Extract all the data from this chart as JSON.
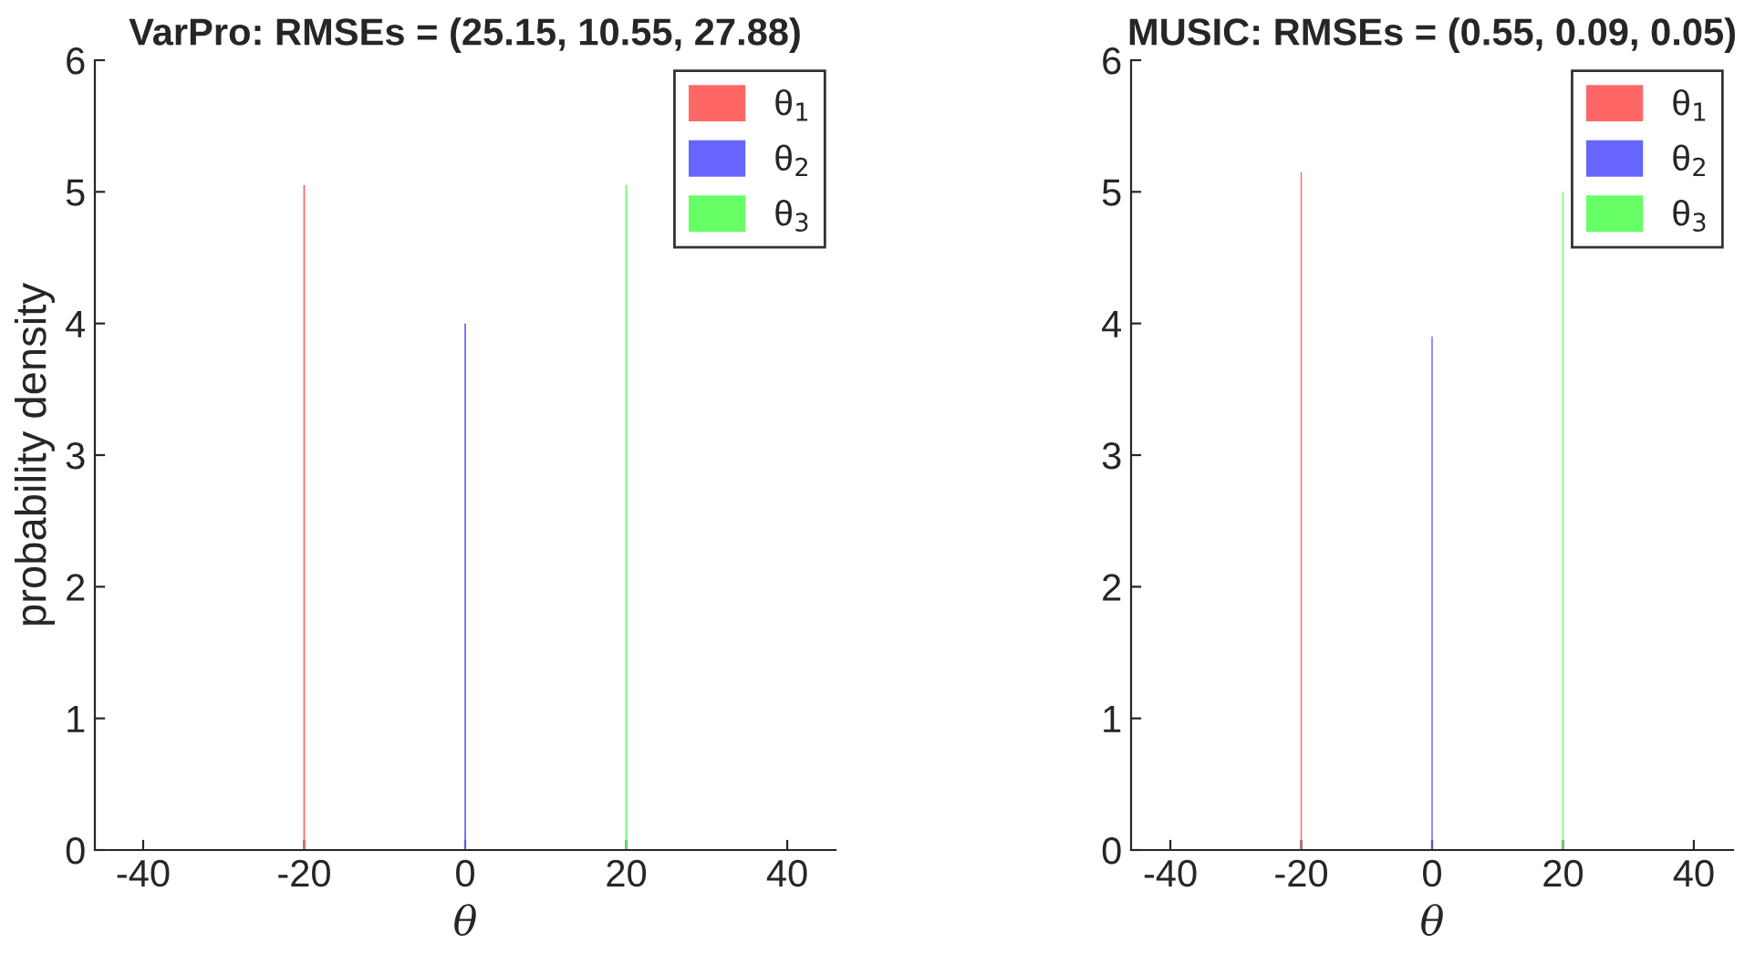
{
  "chart_data": [
    {
      "type": "histogram",
      "title": "VarPro: RMSEs = (25.15, 10.55, 27.88)",
      "xlabel": "θ",
      "ylabel": "probability density",
      "xlim": [
        -46,
        46
      ],
      "xticks": [
        -40,
        -20,
        0,
        20,
        40
      ],
      "ylim": [
        0,
        6
      ],
      "yticks": [
        0,
        1,
        2,
        3,
        4,
        5,
        6
      ],
      "grid": false,
      "legend": "top right",
      "bins": [
        -20.1,
        -19.9,
        -0.1,
        0.1,
        19.9,
        20.1
      ],
      "series": [
        {
          "name": "θ$_{1}$",
          "color": "#ff6666",
          "values": [
            5.05,
            null,
            null,
            null,
            null
          ]
        },
        {
          "name": "θ$_{2}$",
          "color": "#6666ff",
          "values": [
            null,
            null,
            4.0,
            null,
            null
          ]
        },
        {
          "name": "θ$_{3}$",
          "color": "#66ff66",
          "values": [
            null,
            null,
            null,
            null,
            5.05
          ]
        }
      ]
    },
    {
      "type": "histogram",
      "title": "MUSIC: RMSEs = (0.55, 0.09, 0.05)",
      "xlabel": "θ",
      "xlim": [
        -46,
        46
      ],
      "xticks": [
        -40,
        -20,
        0,
        20,
        40
      ],
      "ylim": [
        0,
        6
      ],
      "yticks": [
        0,
        1,
        2,
        3,
        4,
        5,
        6
      ],
      "grid": false,
      "legend": "top right",
      "bins": [
        -20.1,
        -19.9,
        -0.1,
        0.1,
        19.9,
        20.1
      ],
      "series": [
        {
          "name": "θ$_{1}$",
          "color": "#ff6666",
          "values": [
            5.15,
            null,
            null,
            null,
            null
          ]
        },
        {
          "name": "θ$_{2}$",
          "color": "#6666ff",
          "values": [
            null,
            null,
            3.9,
            null,
            null
          ]
        },
        {
          "name": "θ$_{3}$",
          "color": "#66ff66",
          "values": [
            null,
            null,
            null,
            null,
            5.0
          ]
        }
      ]
    }
  ]
}
